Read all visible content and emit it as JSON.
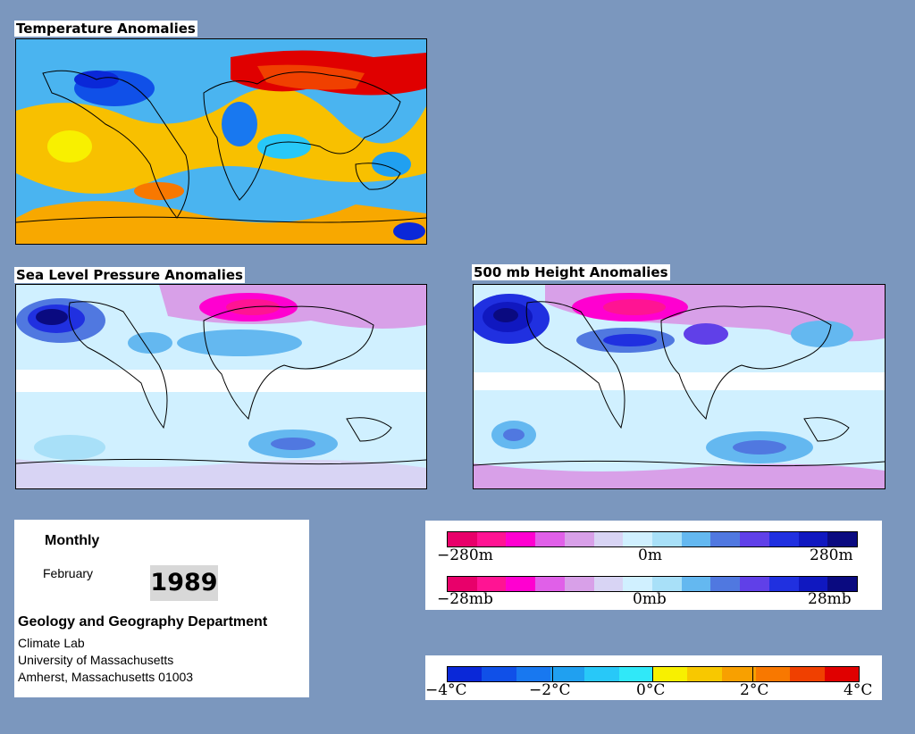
{
  "maps": {
    "temperature": {
      "title": "Temperature Anomalies"
    },
    "slp": {
      "title": "Sea Level Pressure Anomalies"
    },
    "height": {
      "title": "500 mb Height Anomalies"
    }
  },
  "info": {
    "period": "Monthly",
    "month": "February",
    "year": "1989",
    "department": "Geology and Geography Department",
    "address_lines": [
      "Climate Lab",
      "University of Massachusetts",
      "Amherst, Massachusetts 01003"
    ]
  },
  "legends": {
    "height": {
      "labels": [
        "−280m",
        "0m",
        "280m"
      ],
      "colors": [
        "#e8006a",
        "#ff1493",
        "#ff00d0",
        "#e060e8",
        "#d8a0e8",
        "#d8d4f4",
        "#d0f0ff",
        "#a8e0f8",
        "#64b8f0",
        "#5078e0",
        "#6040e8",
        "#2030e0",
        "#1018c0",
        "#0a0a80"
      ]
    },
    "pressure": {
      "labels": [
        "−28mb",
        "0mb",
        "28mb"
      ],
      "colors": [
        "#e8006a",
        "#ff1493",
        "#ff00d0",
        "#e060e8",
        "#d8a0e8",
        "#d8d4f4",
        "#d0f0ff",
        "#a8e0f8",
        "#64b8f0",
        "#5078e0",
        "#6040e8",
        "#2030e0",
        "#1018c0",
        "#0a0a80"
      ]
    },
    "temperature": {
      "labels": [
        "−4°C",
        "−2°C",
        "0°C",
        "2°C",
        "4°C"
      ],
      "colors": [
        "#0a28d8",
        "#1050e8",
        "#1878f0",
        "#20a0f0",
        "#28c8f8",
        "#30e8f8",
        "#f8f000",
        "#f8c800",
        "#f8a000",
        "#f87800",
        "#f04000",
        "#e00000"
      ]
    }
  }
}
